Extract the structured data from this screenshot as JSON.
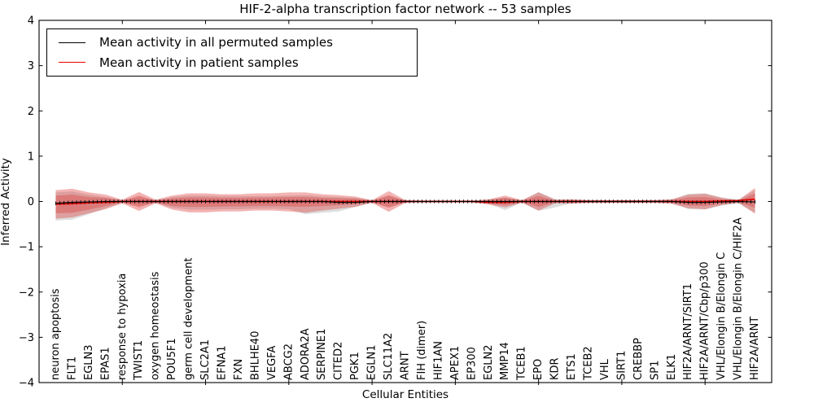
{
  "title": "HIF-2-alpha transcription factor network -- 53 samples",
  "axes": {
    "ylabel": "Inferred Activity",
    "xlabel": "Cellular Entities"
  },
  "legend": {
    "items": [
      {
        "label": "Mean activity in all permuted samples",
        "color": "#000000"
      },
      {
        "label": "Mean activity in patient samples",
        "color": "#e60000"
      }
    ]
  },
  "colors": {
    "patient_line": "#e60000",
    "permuted_line": "#000000",
    "patient_band": "#dc2828",
    "permuted_band": "#787878",
    "frame": "#000000"
  },
  "chart_data": {
    "type": "line",
    "title": "HIF-2-alpha transcription factor network -- 53 samples",
    "xlabel": "Cellular Entities",
    "ylabel": "Inferred Activity",
    "ylim": [
      -4,
      4
    ],
    "xlim": [
      0,
      44
    ],
    "grid": false,
    "legend_position": "upper left",
    "yticks": [
      4,
      3,
      2,
      1,
      0,
      -1,
      -2,
      -3,
      -4
    ],
    "xticks_major": [
      5,
      10,
      15,
      20,
      25,
      30,
      35,
      40
    ],
    "categories": [
      "neuron apoptosis",
      "FLT1",
      "EGLN3",
      "EPAS1",
      "response to hypoxia",
      "TWIST1",
      "oxygen homeostasis",
      "POU5F1",
      "germ cell development",
      "SLC2A1",
      "EFNA1",
      "FXN",
      "BHLHE40",
      "VEGFA",
      "ABCG2",
      "ADORA2A",
      "SERPINE1",
      "CITED2",
      "PGK1",
      "EGLN1",
      "SLC11A2",
      "ARNT",
      "FIH (dimer)",
      "HIF1AN",
      "APEX1",
      "EP300",
      "EGLN2",
      "MMP14",
      "TCEB1",
      "EPO",
      "KDR",
      "ETS1",
      "TCEB2",
      "VHL",
      "SIRT1",
      "CREBBP",
      "SP1",
      "ELK1",
      "HIF2A/ARNT/SIRT1",
      "HIF2A/ARNT/Cbp/p300",
      "VHL/Elongin B/Elongin C",
      "VHL/Elongin B/Elongin C/HIF2A",
      "HIF2A/ARNT"
    ],
    "series": [
      {
        "name": "Mean activity in all permuted samples",
        "color": "#000000",
        "values": [
          -0.04,
          -0.02,
          -0.01,
          0,
          0,
          0,
          0,
          0,
          0,
          0,
          0,
          0,
          0,
          0,
          0,
          0,
          0,
          -0.02,
          -0.02,
          0,
          0,
          0,
          0,
          0,
          0,
          0,
          0,
          0,
          0,
          0,
          0,
          0,
          0,
          0,
          0,
          0,
          0,
          0,
          -0.02,
          -0.02,
          -0.01,
          0,
          -0.01
        ]
      },
      {
        "name": "Mean activity in patient samples",
        "color": "#e60000",
        "values": [
          -0.06,
          -0.05,
          -0.03,
          -0.02,
          0,
          0,
          0,
          0,
          0,
          0,
          0,
          0,
          0,
          0,
          0,
          0,
          0,
          0,
          0,
          0,
          0,
          0,
          0,
          0,
          0,
          0,
          -0.02,
          -0.02,
          0,
          0,
          0,
          0,
          0,
          0,
          0,
          0,
          0,
          0,
          0,
          0,
          0.01,
          0.02,
          0.05
        ]
      }
    ],
    "bands": [
      {
        "name": "permuted-sample-range",
        "color": "#787878",
        "opacity": 0.25,
        "upper": [
          0.2,
          0.22,
          0.15,
          0.1,
          0.03,
          0.1,
          0.03,
          0.1,
          0.13,
          0.13,
          0.12,
          0.12,
          0.12,
          0.12,
          0.13,
          0.14,
          0.11,
          0.1,
          0.08,
          0.02,
          0.12,
          0.02,
          0.015,
          0.015,
          0.015,
          0.015,
          0.04,
          0.09,
          0.02,
          0.21,
          0.05,
          0.04,
          0.03,
          0.03,
          0.03,
          0.03,
          0.03,
          0.04,
          0.17,
          0.18,
          0.09,
          0.04,
          0.25
        ],
        "lower": [
          -0.42,
          -0.4,
          -0.28,
          -0.15,
          -0.03,
          -0.1,
          -0.03,
          -0.14,
          -0.18,
          -0.18,
          -0.17,
          -0.17,
          -0.16,
          -0.16,
          -0.17,
          -0.28,
          -0.25,
          -0.22,
          -0.12,
          -0.02,
          -0.12,
          -0.02,
          -0.015,
          -0.015,
          -0.015,
          -0.015,
          -0.05,
          -0.19,
          -0.02,
          -0.21,
          -0.13,
          -0.04,
          -0.03,
          -0.03,
          -0.03,
          -0.03,
          -0.03,
          -0.04,
          -0.17,
          -0.18,
          -0.09,
          -0.04,
          -0.25
        ]
      },
      {
        "name": "patient-outer-range",
        "color": "#dc2828",
        "opacity": 0.35,
        "upper": [
          0.25,
          0.28,
          0.2,
          0.15,
          0.04,
          0.21,
          0.04,
          0.13,
          0.18,
          0.18,
          0.16,
          0.16,
          0.18,
          0.18,
          0.2,
          0.2,
          0.16,
          0.14,
          0.11,
          0.03,
          0.23,
          0.03,
          0.02,
          0.02,
          0.02,
          0.02,
          0.05,
          0.13,
          0.03,
          0.2,
          0.04,
          0.05,
          0.03,
          0.03,
          0.03,
          0.03,
          0.03,
          0.05,
          0.15,
          0.17,
          0.08,
          0.03,
          0.3
        ],
        "lower": [
          -0.38,
          -0.35,
          -0.26,
          -0.17,
          -0.04,
          -0.21,
          -0.04,
          -0.18,
          -0.24,
          -0.24,
          -0.22,
          -0.22,
          -0.2,
          -0.2,
          -0.22,
          -0.25,
          -0.2,
          -0.16,
          -0.12,
          -0.03,
          -0.23,
          -0.03,
          -0.02,
          -0.02,
          -0.02,
          -0.02,
          -0.07,
          -0.13,
          -0.03,
          -0.2,
          -0.04,
          -0.05,
          -0.03,
          -0.03,
          -0.03,
          -0.03,
          -0.03,
          -0.05,
          -0.15,
          -0.17,
          -0.08,
          -0.03,
          -0.27
        ]
      },
      {
        "name": "patient-inner-range",
        "color": "#dc2828",
        "opacity": 0.3,
        "upper": [
          0.13,
          0.15,
          0.1,
          0.08,
          0.02,
          0.13,
          0.02,
          0.07,
          0.09,
          0.09,
          0.08,
          0.08,
          0.09,
          0.09,
          0.1,
          0.1,
          0.08,
          0.07,
          0.06,
          0.02,
          0.14,
          0.02,
          0.01,
          0.01,
          0.01,
          0.01,
          0.03,
          0.08,
          0.02,
          0.12,
          0.02,
          0.03,
          0.02,
          0.02,
          0.02,
          0.02,
          0.02,
          0.03,
          0.09,
          0.1,
          0.05,
          0.02,
          0.18
        ],
        "lower": [
          -0.26,
          -0.25,
          -0.18,
          -0.1,
          -0.02,
          -0.13,
          -0.02,
          -0.1,
          -0.12,
          -0.12,
          -0.11,
          -0.11,
          -0.1,
          -0.1,
          -0.11,
          -0.12,
          -0.1,
          -0.08,
          -0.06,
          -0.02,
          -0.14,
          -0.02,
          -0.01,
          -0.01,
          -0.01,
          -0.01,
          -0.04,
          -0.08,
          -0.02,
          -0.12,
          -0.02,
          -0.03,
          -0.02,
          -0.02,
          -0.02,
          -0.02,
          -0.02,
          -0.03,
          -0.09,
          -0.1,
          -0.05,
          -0.02,
          -0.14
        ]
      }
    ]
  }
}
